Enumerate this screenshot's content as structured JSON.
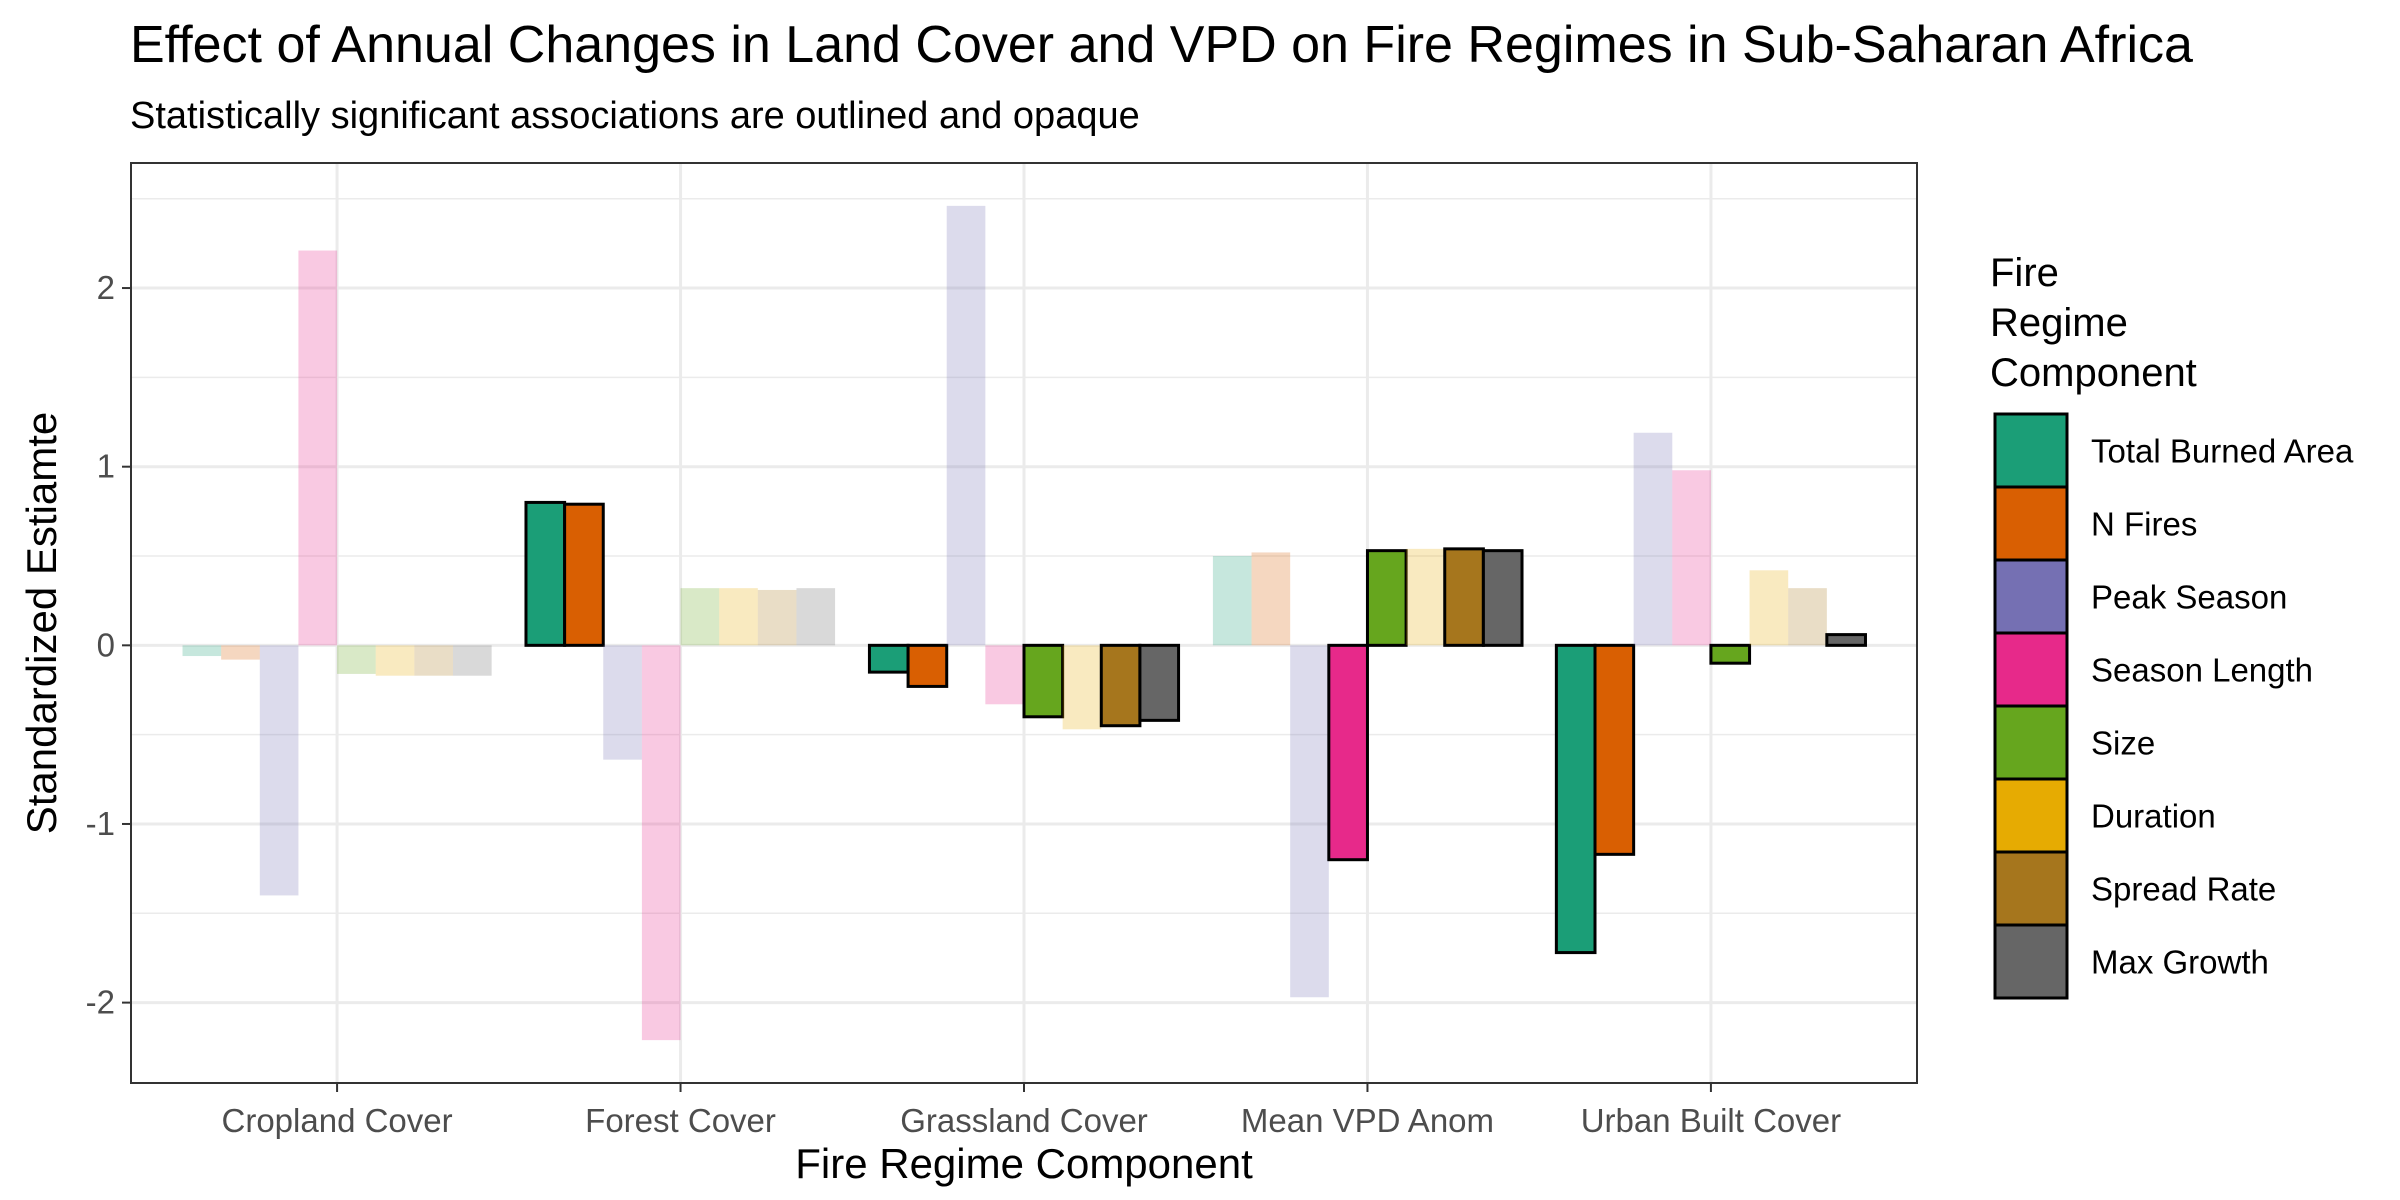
{
  "chart_data": {
    "type": "bar",
    "title": "Effect of Annual Changes in Land Cover and VPD on Fire Regimes in Sub-Saharan Africa",
    "subtitle": "Statistically significant associations are outlined and opaque",
    "xlabel": "Fire Regime Component",
    "ylabel": "Standardized Estiamte",
    "ylim": [
      -2.45,
      2.7
    ],
    "yticks": [
      -2,
      -1,
      0,
      1,
      2
    ],
    "grid": true,
    "legend_title": [
      "Fire",
      "Regime",
      "Component"
    ],
    "legend_position": "right",
    "categories": [
      "Cropland Cover",
      "Forest Cover",
      "Grassland Cover",
      "Mean VPD Anom",
      "Urban Built Cover"
    ],
    "series": [
      {
        "name": "Total Burned Area",
        "color": "#1b9e77",
        "values": [
          -0.06,
          0.8,
          -0.15,
          0.5,
          -1.72
        ],
        "significant": [
          false,
          true,
          true,
          false,
          true
        ]
      },
      {
        "name": "N Fires",
        "color": "#d95f02",
        "values": [
          -0.08,
          0.79,
          -0.23,
          0.52,
          -1.17
        ],
        "significant": [
          false,
          true,
          true,
          false,
          true
        ]
      },
      {
        "name": "Peak Season",
        "color": "#7570b3",
        "values": [
          -1.4,
          -0.64,
          2.46,
          -1.97,
          1.19
        ],
        "significant": [
          false,
          false,
          false,
          false,
          false
        ]
      },
      {
        "name": "Season Length",
        "color": "#e7298a",
        "values": [
          2.21,
          -2.21,
          -0.33,
          -1.2,
          0.98
        ],
        "significant": [
          false,
          false,
          false,
          true,
          false
        ]
      },
      {
        "name": "Size",
        "color": "#66a61e",
        "values": [
          -0.16,
          0.32,
          -0.4,
          0.53,
          -0.1
        ],
        "significant": [
          false,
          false,
          true,
          true,
          true
        ]
      },
      {
        "name": "Duration",
        "color": "#e6ab02",
        "values": [
          -0.17,
          0.32,
          -0.47,
          0.54,
          0.42
        ],
        "significant": [
          false,
          false,
          false,
          false,
          false
        ]
      },
      {
        "name": "Spread Rate",
        "color": "#a6761d",
        "values": [
          -0.17,
          0.31,
          -0.45,
          0.54,
          0.32
        ],
        "significant": [
          false,
          false,
          true,
          true,
          false
        ]
      },
      {
        "name": "Max Growth",
        "color": "#666666",
        "values": [
          -0.17,
          0.32,
          -0.42,
          0.53,
          0.06
        ],
        "significant": [
          false,
          false,
          true,
          true,
          true
        ]
      }
    ]
  }
}
